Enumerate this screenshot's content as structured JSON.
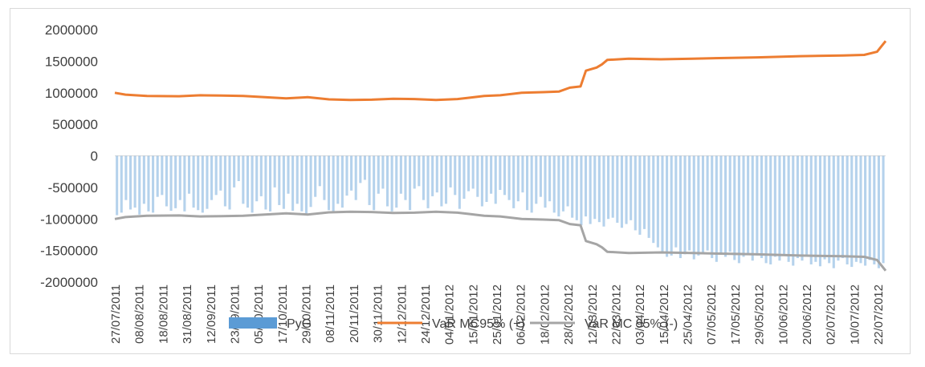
{
  "chart_data": {
    "type": "bar",
    "xlabel": "",
    "ylabel": "",
    "ylim": [
      -2000000,
      2000000
    ],
    "yticks": [
      {
        "value": 2000000,
        "label": "2000000"
      },
      {
        "value": 1500000,
        "label": "1500000"
      },
      {
        "value": 1000000,
        "label": "1000000"
      },
      {
        "value": 500000,
        "label": "500000"
      },
      {
        "value": 0,
        "label": "0"
      },
      {
        "value": -500000,
        "label": "-500000"
      },
      {
        "value": -1000000,
        "label": "-1000000"
      },
      {
        "value": -1500000,
        "label": "-1500000"
      },
      {
        "value": -2000000,
        "label": "-2000000"
      }
    ],
    "x_tick_labels": [
      "27/07/2011",
      "08/08/2011",
      "18/08/2011",
      "31/08/2011",
      "12/09/2011",
      "23/09/2011",
      "05/10/2011",
      "17/10/2011",
      "29/10/2011",
      "08/11/2011",
      "20/11/2011",
      "30/11/2011",
      "12/12/2011",
      "24/12/2011",
      "04/01/2012",
      "15/01/2012",
      "25/01/2012",
      "06/02/2012",
      "18/02/2012",
      "28/02/2012",
      "12/03/2012",
      "22/03/2012",
      "03/04/2012",
      "15/04/2012",
      "25/04/2012",
      "07/05/2012",
      "17/05/2012",
      "29/05/2012",
      "10/06/2012",
      "20/06/2012",
      "02/07/2012",
      "10/07/2012",
      "22/07/2012"
    ],
    "legend_position": "bottom",
    "series": [
      {
        "name": "PyG",
        "kind": "bar",
        "color": "#5b9bd5",
        "values": [
          -940000,
          -900000,
          -700000,
          -850000,
          -820000,
          -930000,
          -760000,
          -880000,
          -900000,
          -650000,
          -620000,
          -800000,
          -870000,
          -830000,
          -700000,
          -880000,
          -600000,
          -820000,
          -860000,
          -900000,
          -840000,
          -700000,
          -620000,
          -550000,
          -800000,
          -850000,
          -500000,
          -400000,
          -760000,
          -820000,
          -900000,
          -720000,
          -640000,
          -850000,
          -880000,
          -500000,
          -780000,
          -840000,
          -600000,
          -870000,
          -760000,
          -880000,
          -920000,
          -810000,
          -650000,
          -480000,
          -700000,
          -860000,
          -900000,
          -760000,
          -820000,
          -630000,
          -550000,
          -700000,
          -430000,
          -380000,
          -780000,
          -860000,
          -600000,
          -520000,
          -800000,
          -880000,
          -820000,
          -600000,
          -700000,
          -860000,
          -520000,
          -480000,
          -700000,
          -830000,
          -640000,
          -580000,
          -800000,
          -760000,
          -500000,
          -620000,
          -840000,
          -680000,
          -560000,
          -520000,
          -650000,
          -800000,
          -730000,
          -600000,
          -760000,
          -540000,
          -620000,
          -700000,
          -830000,
          -720000,
          -580000,
          -860000,
          -900000,
          -760000,
          -650000,
          -820000,
          -720000,
          -900000,
          -960000,
          -880000,
          -800000,
          -980000,
          -1020000,
          -1100000,
          -960000,
          -1080000,
          -1000000,
          -1050000,
          -1120000,
          -1000000,
          -980000,
          -1060000,
          -1140000,
          -1080000,
          -1020000,
          -1180000,
          -1250000,
          -1160000,
          -1300000,
          -1380000,
          -1450000,
          -1520000,
          -1600000,
          -1580000,
          -1450000,
          -1620000,
          -1560000,
          -1500000,
          -1640000,
          -1580000,
          -1550000,
          -1500000,
          -1620000,
          -1680000,
          -1560000,
          -1600000,
          -1520000,
          -1650000,
          -1700000,
          -1600000,
          -1560000,
          -1660000,
          -1580000,
          -1620000,
          -1700000,
          -1720000,
          -1600000,
          -1660000,
          -1560000,
          -1680000,
          -1740000,
          -1620000,
          -1660000,
          -1600000,
          -1720000,
          -1680000,
          -1750000,
          -1640000,
          -1700000,
          -1780000,
          -1660000,
          -1620000,
          -1720000,
          -1760000,
          -1680000,
          -1700000,
          -1740000,
          -1650000,
          -1720000,
          -1780000,
          -1700000
        ]
      },
      {
        "name": "VaR  MC95% (+)",
        "kind": "line",
        "color": "#ed7d31",
        "points": [
          [
            0,
            1000000
          ],
          [
            10,
            970000
          ],
          [
            30,
            950000
          ],
          [
            60,
            945000
          ],
          [
            80,
            960000
          ],
          [
            100,
            955000
          ],
          [
            120,
            950000
          ],
          [
            140,
            930000
          ],
          [
            160,
            910000
          ],
          [
            180,
            930000
          ],
          [
            200,
            895000
          ],
          [
            220,
            885000
          ],
          [
            240,
            890000
          ],
          [
            260,
            905000
          ],
          [
            280,
            900000
          ],
          [
            300,
            885000
          ],
          [
            320,
            900000
          ],
          [
            330,
            920000
          ],
          [
            345,
            950000
          ],
          [
            360,
            960000
          ],
          [
            380,
            1000000
          ],
          [
            400,
            1010000
          ],
          [
            415,
            1020000
          ],
          [
            425,
            1080000
          ],
          [
            435,
            1100000
          ],
          [
            440,
            1350000
          ],
          [
            450,
            1400000
          ],
          [
            455,
            1450000
          ],
          [
            460,
            1520000
          ],
          [
            480,
            1540000
          ],
          [
            510,
            1530000
          ],
          [
            540,
            1540000
          ],
          [
            570,
            1550000
          ],
          [
            600,
            1560000
          ],
          [
            640,
            1580000
          ],
          [
            680,
            1590000
          ],
          [
            700,
            1600000
          ],
          [
            712,
            1650000
          ],
          [
            720,
            1820000
          ]
        ]
      },
      {
        "name": "VaR  MC 95% (-)",
        "kind": "line",
        "color": "#a5a5a5",
        "points": [
          [
            0,
            -1000000
          ],
          [
            10,
            -970000
          ],
          [
            30,
            -950000
          ],
          [
            60,
            -945000
          ],
          [
            80,
            -960000
          ],
          [
            100,
            -955000
          ],
          [
            120,
            -950000
          ],
          [
            140,
            -930000
          ],
          [
            160,
            -910000
          ],
          [
            180,
            -930000
          ],
          [
            200,
            -895000
          ],
          [
            220,
            -885000
          ],
          [
            240,
            -890000
          ],
          [
            260,
            -905000
          ],
          [
            280,
            -900000
          ],
          [
            300,
            -885000
          ],
          [
            320,
            -900000
          ],
          [
            330,
            -920000
          ],
          [
            345,
            -950000
          ],
          [
            360,
            -960000
          ],
          [
            380,
            -1000000
          ],
          [
            400,
            -1010000
          ],
          [
            415,
            -1020000
          ],
          [
            425,
            -1080000
          ],
          [
            435,
            -1100000
          ],
          [
            440,
            -1350000
          ],
          [
            450,
            -1400000
          ],
          [
            455,
            -1450000
          ],
          [
            460,
            -1520000
          ],
          [
            480,
            -1540000
          ],
          [
            510,
            -1530000
          ],
          [
            540,
            -1540000
          ],
          [
            570,
            -1550000
          ],
          [
            600,
            -1560000
          ],
          [
            640,
            -1580000
          ],
          [
            680,
            -1590000
          ],
          [
            700,
            -1600000
          ],
          [
            712,
            -1650000
          ],
          [
            720,
            -1820000
          ]
        ]
      }
    ]
  }
}
